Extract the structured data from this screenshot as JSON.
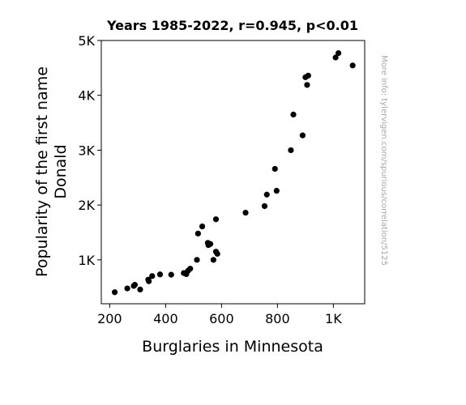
{
  "chart_data": {
    "type": "scatter",
    "title": "Years 1985-2022, r=0.945, p<0.01",
    "xlabel": "Burglaries in Minnesota",
    "ylabel_lines": [
      "Popularity of the first name",
      "Donald"
    ],
    "side_note": "More info: tylervigen.com/spurious/correlation/5125",
    "xlim": [
      170,
      1112
    ],
    "ylim": [
      200,
      5000
    ],
    "x_ticks": [
      {
        "value": 200,
        "label": "200"
      },
      {
        "value": 400,
        "label": "400"
      },
      {
        "value": 600,
        "label": "600"
      },
      {
        "value": 800,
        "label": "800"
      },
      {
        "value": 1000,
        "label": "1K"
      }
    ],
    "y_ticks": [
      {
        "value": 1000,
        "label": "1K"
      },
      {
        "value": 2000,
        "label": "2K"
      },
      {
        "value": 3000,
        "label": "3K"
      },
      {
        "value": 4000,
        "label": "4K"
      },
      {
        "value": 5000,
        "label": "5K"
      }
    ],
    "point_color": "#000000",
    "grid": false,
    "points": [
      {
        "x": 1069,
        "y": 4545
      },
      {
        "x": 1018,
        "y": 4770
      },
      {
        "x": 1008,
        "y": 4690
      },
      {
        "x": 910,
        "y": 4360
      },
      {
        "x": 900,
        "y": 4330
      },
      {
        "x": 906,
        "y": 4190
      },
      {
        "x": 857,
        "y": 3650
      },
      {
        "x": 890,
        "y": 3270
      },
      {
        "x": 848,
        "y": 3000
      },
      {
        "x": 791,
        "y": 2660
      },
      {
        "x": 797,
        "y": 2260
      },
      {
        "x": 762,
        "y": 2190
      },
      {
        "x": 754,
        "y": 1980
      },
      {
        "x": 686,
        "y": 1860
      },
      {
        "x": 580,
        "y": 1740
      },
      {
        "x": 531,
        "y": 1610
      },
      {
        "x": 516,
        "y": 1480
      },
      {
        "x": 551,
        "y": 1310
      },
      {
        "x": 560,
        "y": 1290
      },
      {
        "x": 553,
        "y": 1270
      },
      {
        "x": 580,
        "y": 1150
      },
      {
        "x": 585,
        "y": 1110
      },
      {
        "x": 571,
        "y": 1000
      },
      {
        "x": 512,
        "y": 1000
      },
      {
        "x": 488,
        "y": 840
      },
      {
        "x": 480,
        "y": 800
      },
      {
        "x": 465,
        "y": 760
      },
      {
        "x": 474,
        "y": 740
      },
      {
        "x": 420,
        "y": 730
      },
      {
        "x": 380,
        "y": 735
      },
      {
        "x": 352,
        "y": 705
      },
      {
        "x": 338,
        "y": 640
      },
      {
        "x": 340,
        "y": 610
      },
      {
        "x": 290,
        "y": 545
      },
      {
        "x": 286,
        "y": 525
      },
      {
        "x": 263,
        "y": 480
      },
      {
        "x": 309,
        "y": 460
      },
      {
        "x": 218,
        "y": 410
      }
    ]
  }
}
